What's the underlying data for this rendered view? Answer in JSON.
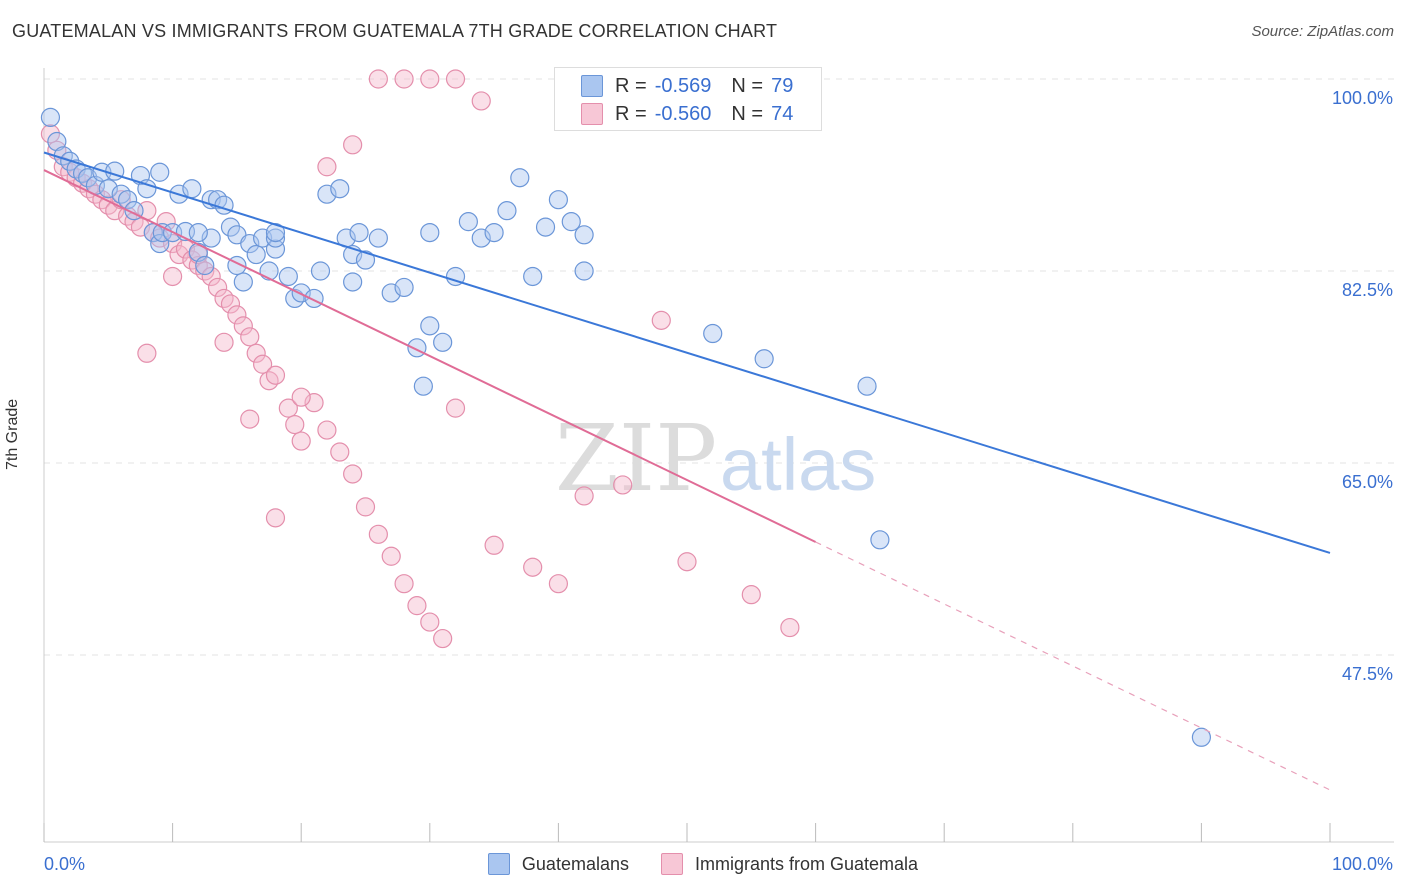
{
  "title": "GUATEMALAN VS IMMIGRANTS FROM GUATEMALA 7TH GRADE CORRELATION CHART",
  "source": "Source: ZipAtlas.com",
  "watermark": {
    "zip": "ZIP",
    "atlas": "atlas"
  },
  "colors": {
    "blue": "#3b78d8",
    "blue_fill": "#aac6f0",
    "pink": "#e06c96",
    "pink_fill": "#f5b8cc",
    "axis_text": "#3a6fd0"
  },
  "legend_top": [
    {
      "r_label": "R =",
      "r_value": "-0.569",
      "n_label": "N =",
      "n_value": "79"
    },
    {
      "r_label": "R =",
      "r_value": "-0.560",
      "n_label": "N =",
      "n_value": "74"
    }
  ],
  "legend_bottom": {
    "series1": "Guatemalans",
    "series2": "Immigrants from Guatemala"
  },
  "chart_data": {
    "type": "scatter",
    "xlabel": "",
    "ylabel": "7th Grade",
    "xlim": [
      0,
      100
    ],
    "ylim": [
      33,
      100
    ],
    "x_tick_labels": [
      "0.0%",
      "100.0%"
    ],
    "y_ticks": [
      100.0,
      82.5,
      65.0,
      47.5
    ],
    "y_tick_labels": [
      "100.0%",
      "82.5%",
      "65.0%",
      "47.5%"
    ],
    "grid": true,
    "legend_position": "top-center",
    "series": [
      {
        "name": "Guatemalans",
        "color": "#3b78d8",
        "trend": {
          "x": [
            0,
            100
          ],
          "y": [
            93.3,
            56.8
          ],
          "dashed_from": null
        },
        "points": [
          [
            0.5,
            96.5
          ],
          [
            1,
            94.3
          ],
          [
            1.5,
            93
          ],
          [
            2,
            92.5
          ],
          [
            2.5,
            91.8
          ],
          [
            3,
            91.4
          ],
          [
            3.4,
            91
          ],
          [
            4,
            90.3
          ],
          [
            4.5,
            91.5
          ],
          [
            5,
            90
          ],
          [
            5.5,
            91.6
          ],
          [
            6,
            89.5
          ],
          [
            6.5,
            89
          ],
          [
            7,
            88
          ],
          [
            7.5,
            91.2
          ],
          [
            8,
            90
          ],
          [
            8.5,
            86
          ],
          [
            9,
            91.5
          ],
          [
            9,
            85
          ],
          [
            9.2,
            86
          ],
          [
            10,
            86
          ],
          [
            10.5,
            89.5
          ],
          [
            11,
            86.1
          ],
          [
            11.5,
            90
          ],
          [
            12,
            84.2
          ],
          [
            12.5,
            83
          ],
          [
            13,
            85.5
          ],
          [
            13,
            89
          ],
          [
            13.5,
            89
          ],
          [
            14,
            88.5
          ],
          [
            14.5,
            86.5
          ],
          [
            15,
            85.8
          ],
          [
            15.5,
            81.5
          ],
          [
            16,
            85
          ],
          [
            16.5,
            84
          ],
          [
            17,
            85.5
          ],
          [
            17.5,
            82.5
          ],
          [
            18,
            84.5
          ],
          [
            18,
            85.5
          ],
          [
            19,
            82
          ],
          [
            19.5,
            80
          ],
          [
            20,
            80.5
          ],
          [
            21,
            80
          ],
          [
            21.5,
            82.5
          ],
          [
            22,
            89.5
          ],
          [
            23,
            90
          ],
          [
            23.5,
            85.5
          ],
          [
            24,
            84
          ],
          [
            24.5,
            86
          ],
          [
            25,
            83.5
          ],
          [
            26,
            85.5
          ],
          [
            27,
            80.5
          ],
          [
            28,
            81
          ],
          [
            29,
            75.5
          ],
          [
            29.5,
            72
          ],
          [
            30,
            86
          ],
          [
            31,
            76
          ],
          [
            32,
            82
          ],
          [
            33,
            87
          ],
          [
            34,
            85.5
          ],
          [
            35,
            86
          ],
          [
            36,
            88
          ],
          [
            37,
            91
          ],
          [
            38,
            82
          ],
          [
            39,
            86.5
          ],
          [
            40,
            89
          ],
          [
            41,
            87
          ],
          [
            42,
            82.5
          ],
          [
            12,
            86
          ],
          [
            15,
            83
          ],
          [
            18,
            86
          ],
          [
            24,
            81.5
          ],
          [
            42,
            85.8
          ],
          [
            30,
            77.5
          ],
          [
            52,
            76.8
          ],
          [
            56,
            74.5
          ],
          [
            64,
            72
          ],
          [
            65,
            58
          ],
          [
            90,
            40
          ]
        ]
      },
      {
        "name": "Immigrants from Guatemala",
        "color": "#e06c96",
        "trend": {
          "x": [
            0,
            100
          ],
          "y": [
            91.7,
            35.2
          ],
          "dashed_from": 60
        },
        "points": [
          [
            0.5,
            95
          ],
          [
            1,
            93.5
          ],
          [
            1.5,
            92
          ],
          [
            2,
            91.5
          ],
          [
            2.5,
            91
          ],
          [
            3,
            90.5
          ],
          [
            3.5,
            90
          ],
          [
            4,
            89.5
          ],
          [
            4.5,
            89
          ],
          [
            5,
            88.5
          ],
          [
            5.5,
            88
          ],
          [
            6,
            89
          ],
          [
            6.5,
            87.5
          ],
          [
            7,
            87
          ],
          [
            7.5,
            86.5
          ],
          [
            8,
            88
          ],
          [
            8.5,
            86
          ],
          [
            9,
            85.5
          ],
          [
            9.5,
            87
          ],
          [
            10,
            85
          ],
          [
            10.5,
            84
          ],
          [
            11,
            84.5
          ],
          [
            11.5,
            83.5
          ],
          [
            12,
            83
          ],
          [
            12.5,
            82.5
          ],
          [
            13,
            82
          ],
          [
            13.5,
            81
          ],
          [
            14,
            80
          ],
          [
            14.5,
            79.5
          ],
          [
            15,
            78.5
          ],
          [
            15.5,
            77.5
          ],
          [
            16,
            76.5
          ],
          [
            16.5,
            75
          ],
          [
            17,
            74
          ],
          [
            17.5,
            72.5
          ],
          [
            18,
            73
          ],
          [
            19,
            70
          ],
          [
            19.5,
            68.5
          ],
          [
            20,
            67
          ],
          [
            21,
            70.5
          ],
          [
            22,
            68
          ],
          [
            23,
            66
          ],
          [
            24,
            64
          ],
          [
            25,
            61
          ],
          [
            26,
            58.5
          ],
          [
            27,
            56.5
          ],
          [
            28,
            54
          ],
          [
            29,
            52
          ],
          [
            30,
            50.5
          ],
          [
            31,
            49
          ],
          [
            32,
            70
          ],
          [
            35,
            57.5
          ],
          [
            38,
            55.5
          ],
          [
            40,
            54
          ],
          [
            42,
            62
          ],
          [
            45,
            63
          ],
          [
            48,
            78
          ],
          [
            50,
            56
          ],
          [
            55,
            53
          ],
          [
            58,
            50
          ],
          [
            8,
            75
          ],
          [
            10,
            82
          ],
          [
            12,
            84
          ],
          [
            14,
            76
          ],
          [
            16,
            69
          ],
          [
            18,
            60
          ],
          [
            20,
            71
          ],
          [
            22,
            92
          ],
          [
            24,
            94
          ],
          [
            26,
            100
          ],
          [
            28,
            100
          ],
          [
            30,
            100
          ],
          [
            32,
            100
          ],
          [
            34,
            98
          ]
        ]
      }
    ]
  }
}
